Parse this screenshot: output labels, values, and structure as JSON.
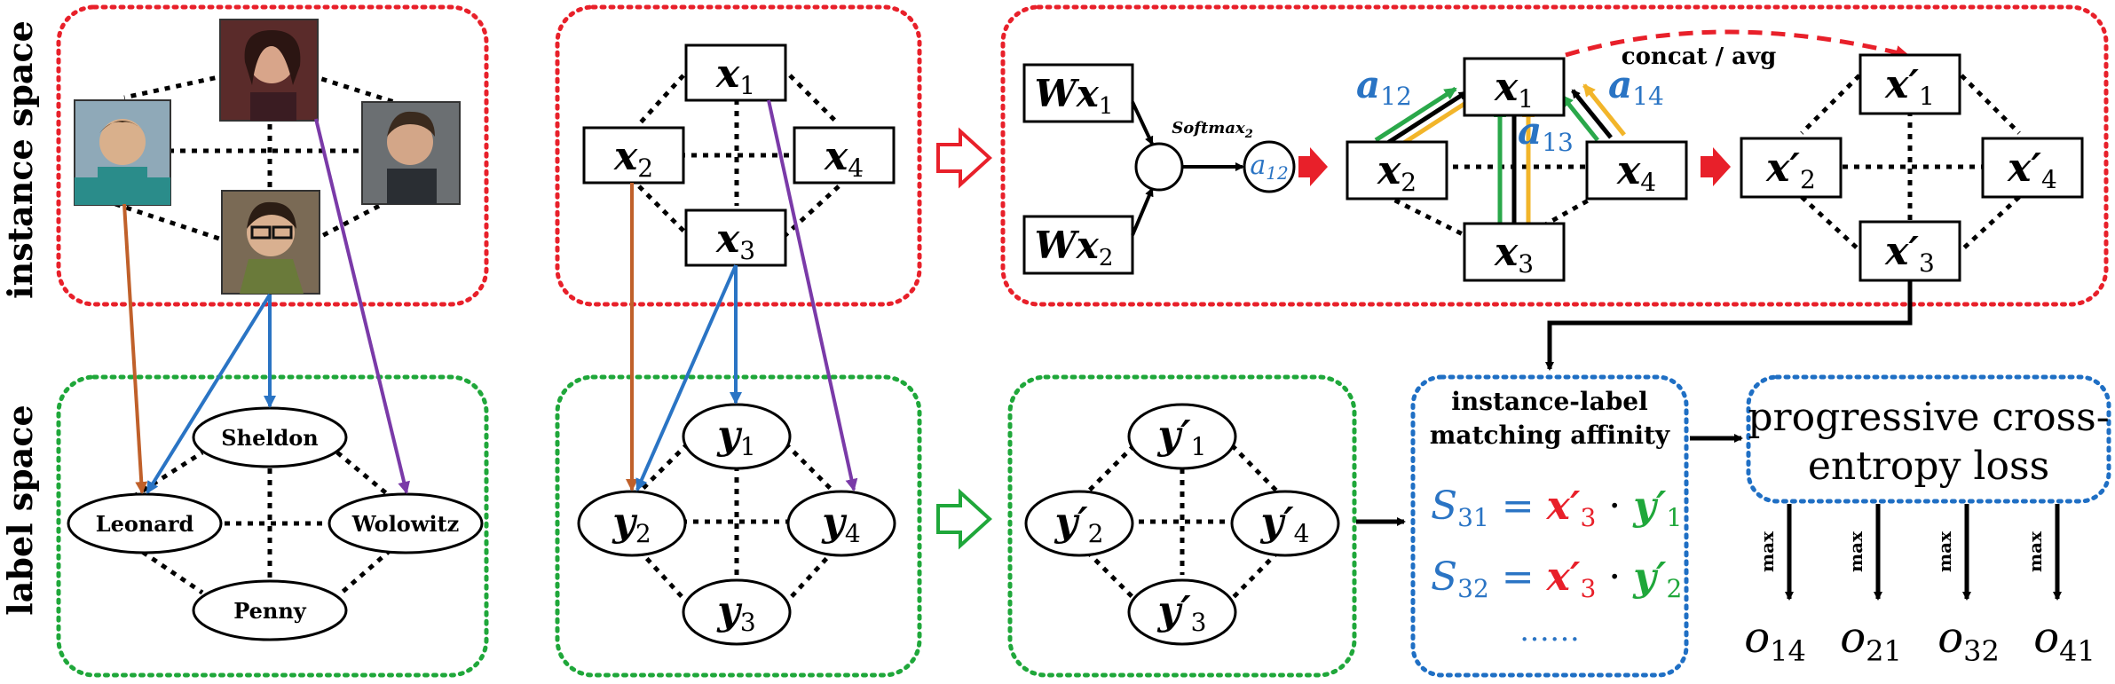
{
  "side_labels": {
    "instance": "instance space",
    "label": "label space"
  },
  "characters": {
    "sheldon": "Sheldon",
    "leonard": "Leonard",
    "wolowitz": "Wolowitz",
    "penny": "Penny"
  },
  "nodes": {
    "x1": {
      "base": "x",
      "sub": "1"
    },
    "x2": {
      "base": "x",
      "sub": "2"
    },
    "x3": {
      "base": "x",
      "sub": "3"
    },
    "x4": {
      "base": "x",
      "sub": "4"
    },
    "y1": {
      "base": "y",
      "sub": "1"
    },
    "y2": {
      "base": "y",
      "sub": "2"
    },
    "y3": {
      "base": "y",
      "sub": "3"
    },
    "y4": {
      "base": "y",
      "sub": "4"
    },
    "xp1": {
      "base": "x′",
      "sub": "1"
    },
    "xp2": {
      "base": "x′",
      "sub": "2"
    },
    "xp3": {
      "base": "x′",
      "sub": "3"
    },
    "xp4": {
      "base": "x′",
      "sub": "4"
    },
    "yp1": {
      "base": "y′",
      "sub": "1"
    },
    "yp2": {
      "base": "y′",
      "sub": "2"
    },
    "yp3": {
      "base": "y′",
      "sub": "3"
    },
    "yp4": {
      "base": "y′",
      "sub": "4"
    },
    "wx1": {
      "base": "Wx",
      "sub": "1"
    },
    "wx2": {
      "base": "Wx",
      "sub": "2"
    }
  },
  "attention": {
    "softmax": {
      "base": "Softmax",
      "sub": "2"
    },
    "a12_small": {
      "base": "a",
      "sub": "12"
    },
    "a12": {
      "base": "a",
      "sub": "12"
    },
    "a13": {
      "base": "a",
      "sub": "13"
    },
    "a14": {
      "base": "a",
      "sub": "14"
    },
    "concat": "concat / avg"
  },
  "affinity": {
    "title_line1": "instance-label",
    "title_line2": "matching affinity",
    "eq1": {
      "lhs": "S",
      "lhs_sub": "31",
      "eq": " = ",
      "x": "x′",
      "x_sub": "3",
      "dot": " · ",
      "y": "y′",
      "y_sub": "1"
    },
    "eq2": {
      "lhs": "S",
      "lhs_sub": "32",
      "eq": " = ",
      "x": "x′",
      "x_sub": "3",
      "dot": " · ",
      "y": "y′",
      "y_sub": "2"
    },
    "ellipsis": "……"
  },
  "loss": {
    "line1": "progressive cross-",
    "line2": "entropy loss"
  },
  "outputs": [
    {
      "op": "max",
      "base": "o",
      "sub": "14"
    },
    {
      "op": "max",
      "base": "o",
      "sub": "21"
    },
    {
      "op": "max",
      "base": "o",
      "sub": "32"
    },
    {
      "op": "max",
      "base": "o",
      "sub": "41"
    }
  ],
  "colors": {
    "red_dotted": "#e8202a",
    "green_dotted": "#1fa73a",
    "blue_dotted": "#1f6fc4",
    "brown": "#c0602a",
    "blue": "#2a74c4",
    "purple": "#7a3aa8",
    "green": "#2aa84a",
    "orange": "#f2b52a",
    "math_blue": "#2a74c4",
    "math_red": "#e8202a",
    "math_green": "#1fa73a"
  }
}
